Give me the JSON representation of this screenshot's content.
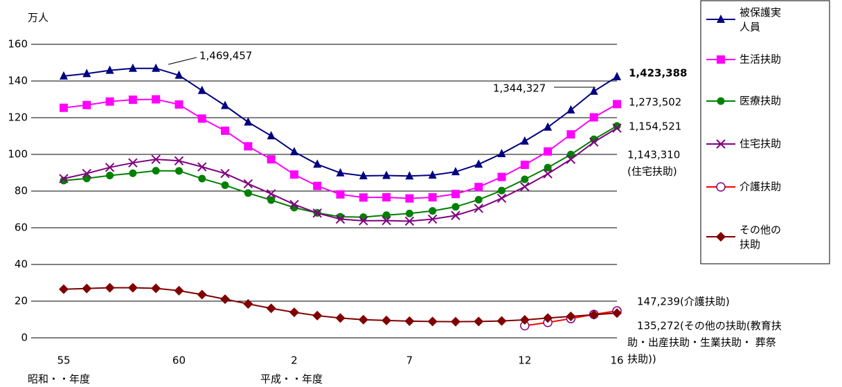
{
  "chart_data": {
    "type": "line",
    "y_unit": "万人",
    "x_label_left": "昭和・・年度",
    "x_label_right": "平成・・年度",
    "categories": [
      "55",
      null,
      null,
      null,
      null,
      "60",
      null,
      null,
      null,
      null,
      "2",
      null,
      null,
      null,
      null,
      "7",
      null,
      null,
      null,
      null,
      "12",
      null,
      null,
      null,
      "16"
    ],
    "ylim": [
      0,
      160
    ],
    "yticks": [
      0,
      20,
      40,
      60,
      80,
      100,
      120,
      140,
      160
    ],
    "grid": true,
    "series": [
      {
        "name": "被保護実人員",
        "color": "#000080",
        "line_color": "#000080",
        "marker": "triangle",
        "values": [
          142.7,
          144.0,
          145.8,
          146.9,
          146.9,
          143.1,
          134.8,
          126.6,
          117.6,
          110.1,
          101.4,
          94.6,
          89.9,
          88.3,
          88.5,
          88.2,
          88.7,
          90.5,
          94.6,
          100.4,
          107.2,
          114.8,
          124.2,
          134.4,
          142.3
        ]
      },
      {
        "name": "生活扶助",
        "color": "#ff00ff",
        "line_color": "#ff00ff",
        "marker": "square",
        "values": [
          125.4,
          126.9,
          128.8,
          129.8,
          130.0,
          127.2,
          119.5,
          112.9,
          104.4,
          97.3,
          89.0,
          82.8,
          78.2,
          76.5,
          76.6,
          76.0,
          76.6,
          78.4,
          82.2,
          87.7,
          94.3,
          101.6,
          110.9,
          120.2,
          127.4
        ]
      },
      {
        "name": "医療扶助",
        "color": "#008000",
        "line_color": "#008000",
        "marker": "circle",
        "values": [
          85.7,
          86.9,
          88.5,
          89.7,
          91.1,
          91.0,
          86.8,
          83.2,
          78.9,
          75.1,
          71.0,
          68.1,
          66.0,
          65.8,
          66.9,
          67.8,
          69.2,
          71.4,
          75.3,
          80.3,
          86.4,
          92.8,
          99.9,
          108.2,
          115.5
        ]
      },
      {
        "name": "住宅扶助",
        "color": "#800080",
        "line_color": "#800080",
        "marker": "x",
        "values": [
          86.8,
          89.6,
          92.9,
          95.4,
          97.3,
          96.5,
          93.2,
          89.6,
          84.0,
          78.5,
          72.7,
          68.0,
          64.7,
          63.8,
          63.9,
          63.6,
          64.7,
          66.7,
          70.6,
          76.1,
          82.4,
          89.4,
          97.3,
          106.7,
          114.3
        ]
      },
      {
        "name": "介護扶助",
        "color": "#800080",
        "line_color": "#ff0000",
        "marker": "open-circle",
        "values": [
          null,
          null,
          null,
          null,
          null,
          null,
          null,
          null,
          null,
          null,
          null,
          null,
          null,
          null,
          null,
          null,
          null,
          null,
          null,
          null,
          6.6,
          8.4,
          10.5,
          12.8,
          14.7
        ]
      },
      {
        "name": "その他の扶助",
        "color": "#800000",
        "line_color": "#800000",
        "marker": "diamond",
        "values": [
          26.5,
          26.9,
          27.3,
          27.3,
          27.0,
          25.7,
          23.6,
          21.1,
          18.5,
          16.1,
          13.9,
          12.1,
          10.8,
          9.9,
          9.5,
          9.1,
          8.9,
          8.8,
          8.9,
          9.2,
          9.8,
          10.8,
          11.7,
          12.6,
          13.5
        ]
      }
    ],
    "annotations": [
      [
        "1,469,457"
      ],
      [
        "1,344,327"
      ],
      [
        "1,423,388"
      ],
      [
        "1,273,502"
      ],
      [
        "1,154,521"
      ],
      [
        "1,143,310",
        "(住宅扶助)"
      ],
      [
        "147,239(介護扶助)"
      ],
      [
        "135,272(その他の扶助(教育扶",
        "助・出産扶助・生業扶助・ 葬祭",
        "扶助))"
      ]
    ]
  }
}
